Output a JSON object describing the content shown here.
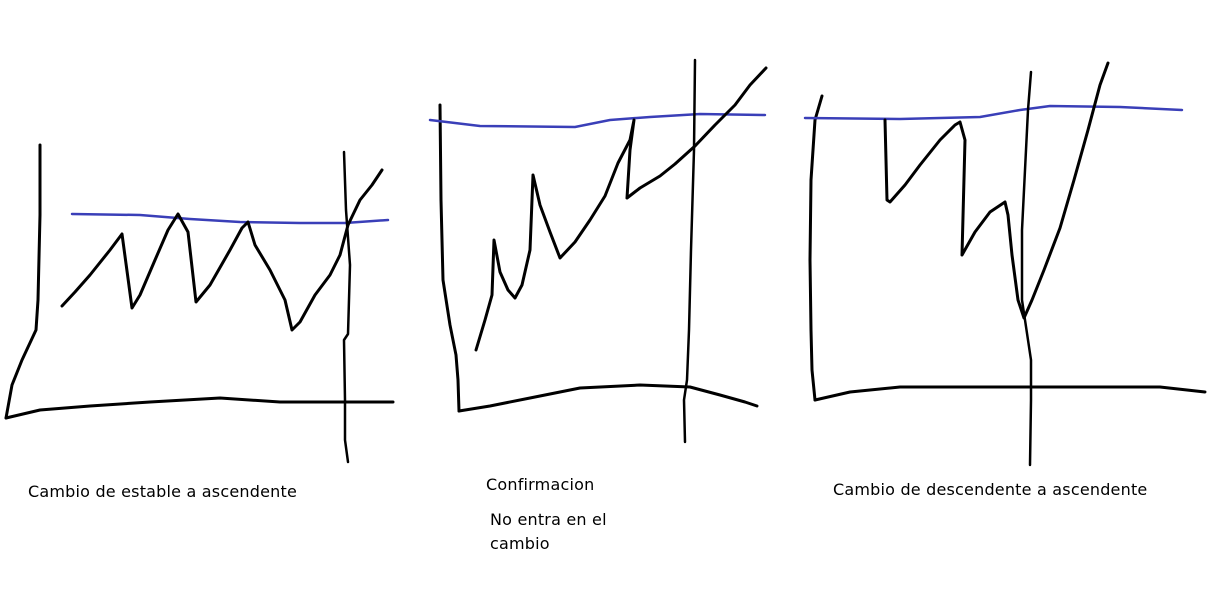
{
  "panels": [
    {
      "caption": "Cambio de estable a ascendente"
    },
    {
      "caption": "Confirmacion",
      "note": "No entra en el cambio"
    },
    {
      "caption": "Cambio de descendente a ascendente"
    }
  ],
  "colors": {
    "ink": "#000000",
    "resistance_line": "#3a3fb8",
    "background": "#ffffff"
  }
}
